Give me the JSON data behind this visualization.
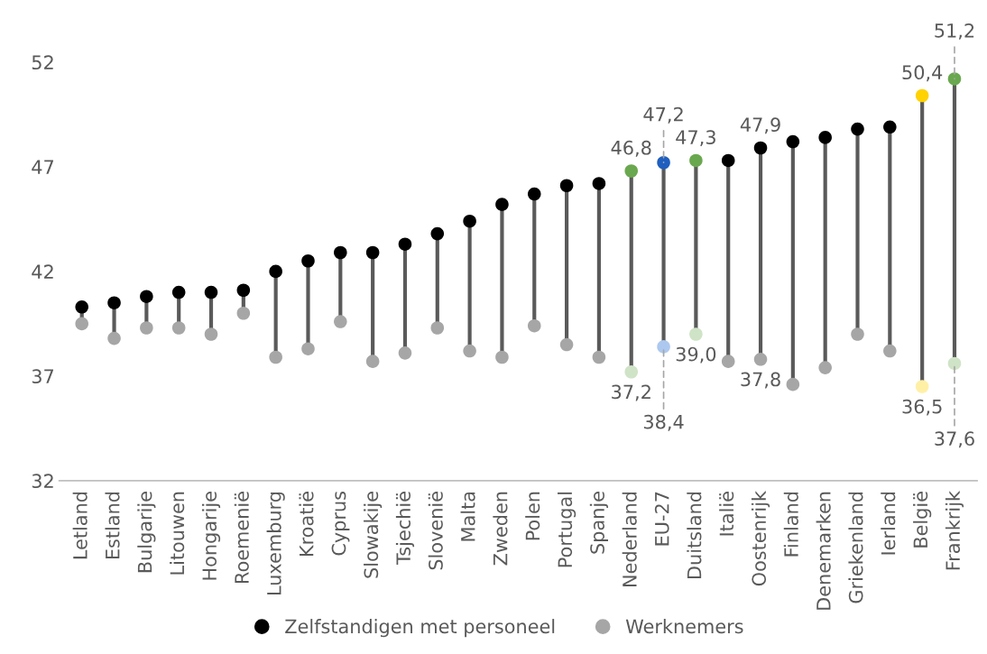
{
  "chart_data": {
    "type": "scatter",
    "categories": [
      "Letland",
      "Estland",
      "Bulgarije",
      "Litouwen",
      "Hongarije",
      "Roemenië",
      "Luxemburg",
      "Kroatië",
      "Cyprus",
      "Slowakije",
      "Tsjechië",
      "Slovenië",
      "Malta",
      "Zweden",
      "Polen",
      "Portugal",
      "Spanje",
      "Nederland",
      "EU-27",
      "Duitsland",
      "Italië",
      "Oostenrijk",
      "Finland",
      "Denemarken",
      "Griekenland",
      "Ierland",
      "België",
      "Frankrijk"
    ],
    "series": [
      {
        "name": "Zelfstandigen met personeel",
        "color": "#000000",
        "values": [
          40.3,
          40.5,
          40.8,
          41.0,
          41.0,
          41.1,
          42.0,
          42.5,
          42.9,
          42.9,
          43.3,
          43.8,
          44.4,
          45.2,
          45.7,
          46.1,
          46.2,
          46.8,
          47.2,
          47.3,
          47.3,
          47.9,
          48.2,
          48.4,
          48.8,
          48.9,
          50.4,
          51.2
        ],
        "colors": [
          "#000000",
          "#000000",
          "#000000",
          "#000000",
          "#000000",
          "#000000",
          "#000000",
          "#000000",
          "#000000",
          "#000000",
          "#000000",
          "#000000",
          "#000000",
          "#000000",
          "#000000",
          "#000000",
          "#000000",
          "#6aa84f",
          "#1f5fbf",
          "#6aa84f",
          "#000000",
          "#000000",
          "#000000",
          "#000000",
          "#000000",
          "#000000",
          "#ffd200",
          "#6aa84f"
        ],
        "value_labels": [
          null,
          null,
          null,
          null,
          null,
          null,
          null,
          null,
          null,
          null,
          null,
          null,
          null,
          null,
          null,
          null,
          null,
          "46,8",
          "47,2",
          "47,3",
          null,
          "47,9",
          null,
          null,
          null,
          null,
          "50,4",
          "51,2"
        ]
      },
      {
        "name": "Werknemers",
        "color": "#a6a6a6",
        "values": [
          39.5,
          38.8,
          39.3,
          39.3,
          39.0,
          40.0,
          37.9,
          38.3,
          39.6,
          37.7,
          38.1,
          39.3,
          38.2,
          37.9,
          39.4,
          38.5,
          37.9,
          37.2,
          38.4,
          39.0,
          37.7,
          37.8,
          36.6,
          37.4,
          39.0,
          38.2,
          36.5,
          37.6
        ],
        "colors": [
          "#a6a6a6",
          "#a6a6a6",
          "#a6a6a6",
          "#a6a6a6",
          "#a6a6a6",
          "#a6a6a6",
          "#a6a6a6",
          "#a6a6a6",
          "#a6a6a6",
          "#a6a6a6",
          "#a6a6a6",
          "#a6a6a6",
          "#a6a6a6",
          "#a6a6a6",
          "#a6a6a6",
          "#a6a6a6",
          "#a6a6a6",
          "#cfe3c6",
          "#adc8ef",
          "#cfe3c6",
          "#a6a6a6",
          "#a6a6a6",
          "#a6a6a6",
          "#a6a6a6",
          "#a6a6a6",
          "#a6a6a6",
          "#fff0a6",
          "#cfe3c6"
        ],
        "value_labels": [
          null,
          null,
          null,
          null,
          null,
          null,
          null,
          null,
          null,
          null,
          null,
          null,
          null,
          null,
          null,
          null,
          null,
          "37,2",
          "38,4",
          "39,0",
          null,
          "37,8",
          null,
          null,
          null,
          null,
          "36,5",
          "37,6"
        ]
      }
    ],
    "ylim": [
      32,
      52
    ],
    "yticks": [
      32,
      37,
      42,
      47,
      52
    ],
    "grid": false,
    "legend": "bottom",
    "marker": "circle"
  }
}
